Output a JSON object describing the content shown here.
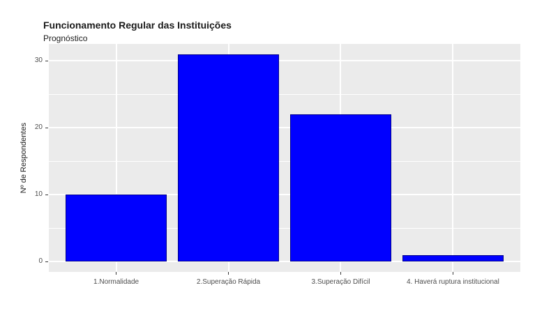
{
  "chart_data": {
    "type": "bar",
    "title": "Funcionamento Regular das Instituições",
    "subtitle": "Prognóstico",
    "ylabel": "Nº de Respondentes",
    "xlabel": "",
    "categories": [
      "1.Normalidade",
      "2.Superação Rápida",
      "3.Superação Difícil",
      "4. Haverá ruptura institucional"
    ],
    "values": [
      10,
      31,
      22,
      1
    ],
    "y_major_ticks": [
      0,
      10,
      20,
      30
    ],
    "y_minor_ticks": [
      5,
      15,
      25
    ],
    "ylim_data": [
      0,
      31
    ],
    "grid": "major-and-minor-horizontal, major-vertical-at-categories",
    "legend_position": "none",
    "colors": {
      "bar_fill": "#0000FF",
      "bar_border": "#00008B",
      "panel_background": "#EBEBEB",
      "gridline": "#FFFFFF",
      "title_text": "#1A1A1A",
      "tick_label_text": "#4D4D4D",
      "tick_mark": "#333333",
      "page_background": "#FFFFFF"
    }
  }
}
